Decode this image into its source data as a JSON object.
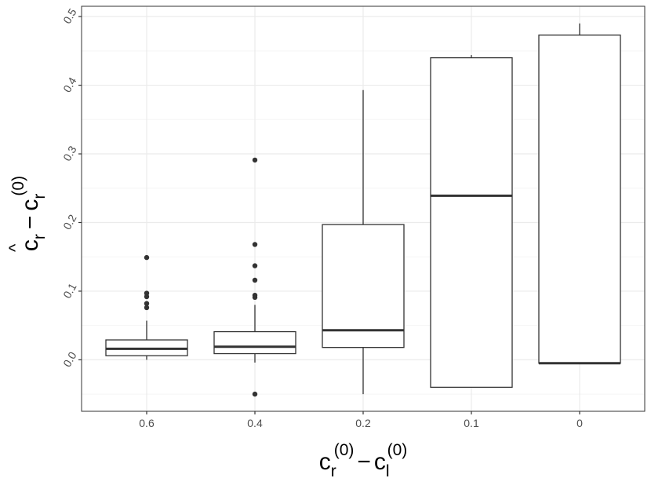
{
  "chart_data": {
    "type": "box",
    "title": "",
    "xlabel": {
      "base1": "c",
      "sub1": "r",
      "sup1": "(0)",
      "op": "−",
      "base2": "c",
      "sub2": "l",
      "sup2": "(0)"
    },
    "ylabel": {
      "hat": "^",
      "base1": "c",
      "sub1": "r",
      "op": "−",
      "base2": "c",
      "sub2": "r",
      "sup2": "(0)"
    },
    "categories": [
      "0.6",
      "0.4",
      "0.2",
      "0.1",
      "0"
    ],
    "ylim": [
      -0.075,
      0.515
    ],
    "yticks": [
      0.0,
      0.1,
      0.2,
      0.3,
      0.4,
      0.5
    ],
    "ytick_labels": [
      "0.0",
      "0.1",
      "0.2",
      "0.3",
      "0.4",
      "0.5"
    ],
    "grid": true,
    "boxes": [
      {
        "category": "0.6",
        "whisker_low": 0.0,
        "q1": 0.006,
        "median": 0.016,
        "q3": 0.029,
        "whisker_high": 0.057,
        "outliers": [
          0.149,
          0.097,
          0.092,
          0.082,
          0.076
        ]
      },
      {
        "category": "0.4",
        "whisker_low": -0.004,
        "q1": 0.009,
        "median": 0.019,
        "q3": 0.041,
        "whisker_high": 0.08,
        "outliers": [
          0.291,
          0.168,
          0.137,
          0.116,
          0.094,
          0.091,
          -0.05
        ]
      },
      {
        "category": "0.2",
        "whisker_low": -0.05,
        "q1": 0.018,
        "median": 0.043,
        "q3": 0.197,
        "whisker_high": 0.393,
        "outliers": []
      },
      {
        "category": "0.1",
        "whisker_low": -0.04,
        "q1": -0.04,
        "median": 0.239,
        "q3": 0.44,
        "whisker_high": 0.444,
        "outliers": []
      },
      {
        "category": "0",
        "whisker_low": -0.005,
        "q1": -0.005,
        "median": -0.005,
        "q3": 0.473,
        "whisker_high": 0.49,
        "outliers": []
      }
    ],
    "colors": {
      "box_line": "#333333",
      "grid_major": "#ebebeb",
      "grid_minor": "#f5f5f5",
      "panel_border": "#333333",
      "outlier": "#333333"
    }
  }
}
